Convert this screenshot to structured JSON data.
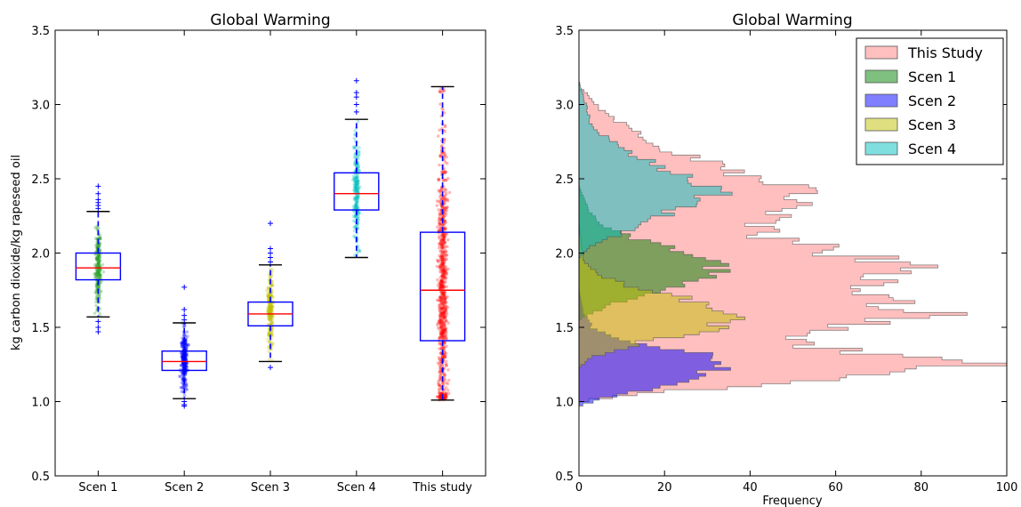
{
  "chart_data": [
    {
      "type": "boxplot",
      "title": "Global Warming",
      "ylabel": "kg carbon dioxide/kg rapeseed oil",
      "xlabel": "",
      "ylim": [
        0.5,
        3.5
      ],
      "yticks": [
        "0.5",
        "1.0",
        "1.5",
        "2.0",
        "2.5",
        "3.0",
        "3.5"
      ],
      "grid": false,
      "categories": [
        "Scen 1",
        "Scen 2",
        "Scen 3",
        "Scen 4",
        "This study"
      ],
      "boxes": [
        {
          "name": "Scen 1",
          "color": "#2ca02c",
          "n": 260,
          "spread": 0.045,
          "q1": 1.82,
          "median": 1.9,
          "q3": 2.0,
          "whisker_low": 1.57,
          "whisker_high": 2.28,
          "outliers": [
            2.3,
            2.32,
            2.34,
            2.36,
            2.4,
            2.45,
            1.54,
            1.5,
            1.47
          ]
        },
        {
          "name": "Scen 2",
          "color": "#0000ff",
          "n": 300,
          "spread": 0.045,
          "q1": 1.21,
          "median": 1.27,
          "q3": 1.34,
          "whisker_low": 1.02,
          "whisker_high": 1.53,
          "outliers": [
            1.55,
            1.58,
            1.62,
            1.77,
            1.0,
            0.98,
            0.97
          ]
        },
        {
          "name": "Scen 3",
          "color": "#bfbf00",
          "n": 260,
          "spread": 0.045,
          "q1": 1.51,
          "median": 1.59,
          "q3": 1.67,
          "whisker_low": 1.27,
          "whisker_high": 1.92,
          "outliers": [
            1.94,
            1.97,
            2.0,
            2.03,
            2.2,
            1.23
          ]
        },
        {
          "name": "Scen 4",
          "color": "#00bfbf",
          "n": 260,
          "spread": 0.045,
          "q1": 2.29,
          "median": 2.4,
          "q3": 2.54,
          "whisker_low": 1.97,
          "whisker_high": 2.9,
          "outliers": [
            2.95,
            3.0,
            3.05,
            3.08,
            3.16
          ]
        },
        {
          "name": "This study",
          "color": "#ff0000",
          "n": 800,
          "spread": 0.07,
          "q1": 1.41,
          "median": 1.75,
          "q3": 2.14,
          "whisker_low": 1.01,
          "whisker_high": 3.12,
          "outliers": []
        }
      ]
    },
    {
      "type": "histogram",
      "orientation": "horizontal",
      "title": "Global Warming",
      "xlabel": "Frequency",
      "ylabel": "",
      "xlim": [
        0,
        100
      ],
      "ylim": [
        0.5,
        3.5
      ],
      "xticks": [
        "0",
        "20",
        "40",
        "60",
        "80",
        "100"
      ],
      "yticks": [
        "0.5",
        "1.0",
        "1.5",
        "2.0",
        "2.5",
        "3.0",
        "3.5"
      ],
      "legend_position": "top-right",
      "series": [
        {
          "name": "This Study",
          "color": "#ff8080",
          "profile": [
            [
              1.0,
              0
            ],
            [
              1.05,
              12
            ],
            [
              1.12,
              45
            ],
            [
              1.2,
              78
            ],
            [
              1.26,
              93
            ],
            [
              1.32,
              70
            ],
            [
              1.4,
              48
            ],
            [
              1.5,
              60
            ],
            [
              1.6,
              82
            ],
            [
              1.7,
              66
            ],
            [
              1.8,
              75
            ],
            [
              1.9,
              76
            ],
            [
              2.0,
              62
            ],
            [
              2.1,
              45
            ],
            [
              2.2,
              40
            ],
            [
              2.3,
              48
            ],
            [
              2.4,
              54
            ],
            [
              2.5,
              42
            ],
            [
              2.6,
              32
            ],
            [
              2.7,
              20
            ],
            [
              2.8,
              14
            ],
            [
              2.9,
              8
            ],
            [
              3.0,
              4
            ],
            [
              3.1,
              1
            ]
          ]
        },
        {
          "name": "Scen 1",
          "color": "#008000",
          "profile": [
            [
              1.55,
              0
            ],
            [
              1.6,
              3
            ],
            [
              1.7,
              12
            ],
            [
              1.8,
              26
            ],
            [
              1.9,
              33
            ],
            [
              2.0,
              26
            ],
            [
              2.1,
              12
            ],
            [
              2.2,
              5
            ],
            [
              2.3,
              2
            ],
            [
              2.45,
              0
            ]
          ]
        },
        {
          "name": "Scen 2",
          "color": "#0000ff",
          "profile": [
            [
              0.97,
              0
            ],
            [
              1.02,
              5
            ],
            [
              1.1,
              20
            ],
            [
              1.2,
              30
            ],
            [
              1.26,
              36
            ],
            [
              1.32,
              28
            ],
            [
              1.4,
              12
            ],
            [
              1.5,
              3
            ],
            [
              1.6,
              1
            ],
            [
              1.77,
              0
            ]
          ]
        },
        {
          "name": "Scen 3",
          "color": "#bfbf00",
          "profile": [
            [
              1.23,
              0
            ],
            [
              1.3,
              3
            ],
            [
              1.4,
              15
            ],
            [
              1.5,
              33
            ],
            [
              1.58,
              40
            ],
            [
              1.65,
              32
            ],
            [
              1.75,
              15
            ],
            [
              1.85,
              5
            ],
            [
              1.95,
              1
            ],
            [
              2.2,
              0
            ]
          ]
        },
        {
          "name": "Scen 4",
          "color": "#00c0c0",
          "profile": [
            [
              1.97,
              0
            ],
            [
              2.05,
              3
            ],
            [
              2.15,
              12
            ],
            [
              2.3,
              24
            ],
            [
              2.4,
              32
            ],
            [
              2.5,
              26
            ],
            [
              2.6,
              18
            ],
            [
              2.7,
              10
            ],
            [
              2.85,
              3
            ],
            [
              3.16,
              0
            ]
          ]
        }
      ]
    }
  ]
}
